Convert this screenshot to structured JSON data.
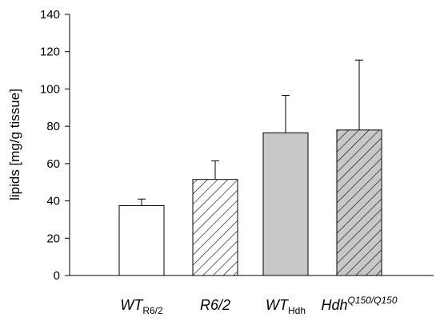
{
  "chart_data": {
    "type": "bar",
    "ylabel": "lipids [mg/g tissue]",
    "xlabel": "",
    "title": "",
    "ylim": [
      0,
      140
    ],
    "yticks": [
      "0",
      "20",
      "40",
      "60",
      "80",
      "100",
      "120",
      "140"
    ],
    "categories": [
      {
        "main": "WT",
        "sub": "R6/2",
        "sup": ""
      },
      {
        "main": "R6/2",
        "sub": "",
        "sup": ""
      },
      {
        "main": "WT",
        "sub": "Hdh",
        "sup": ""
      },
      {
        "main": "Hdh",
        "sub": "",
        "sup": "Q150/Q150"
      }
    ],
    "values": [
      37.5,
      51.5,
      76.5,
      78.0
    ],
    "errors_up": [
      3.5,
      10.0,
      20.0,
      37.5
    ],
    "styles": [
      {
        "fill": "#ffffff",
        "hatch": false
      },
      {
        "fill": "#ffffff",
        "hatch": true
      },
      {
        "fill": "#c8c8c8",
        "hatch": false
      },
      {
        "fill": "#c8c8c8",
        "hatch": true
      }
    ],
    "grid": false,
    "legend": "none"
  }
}
